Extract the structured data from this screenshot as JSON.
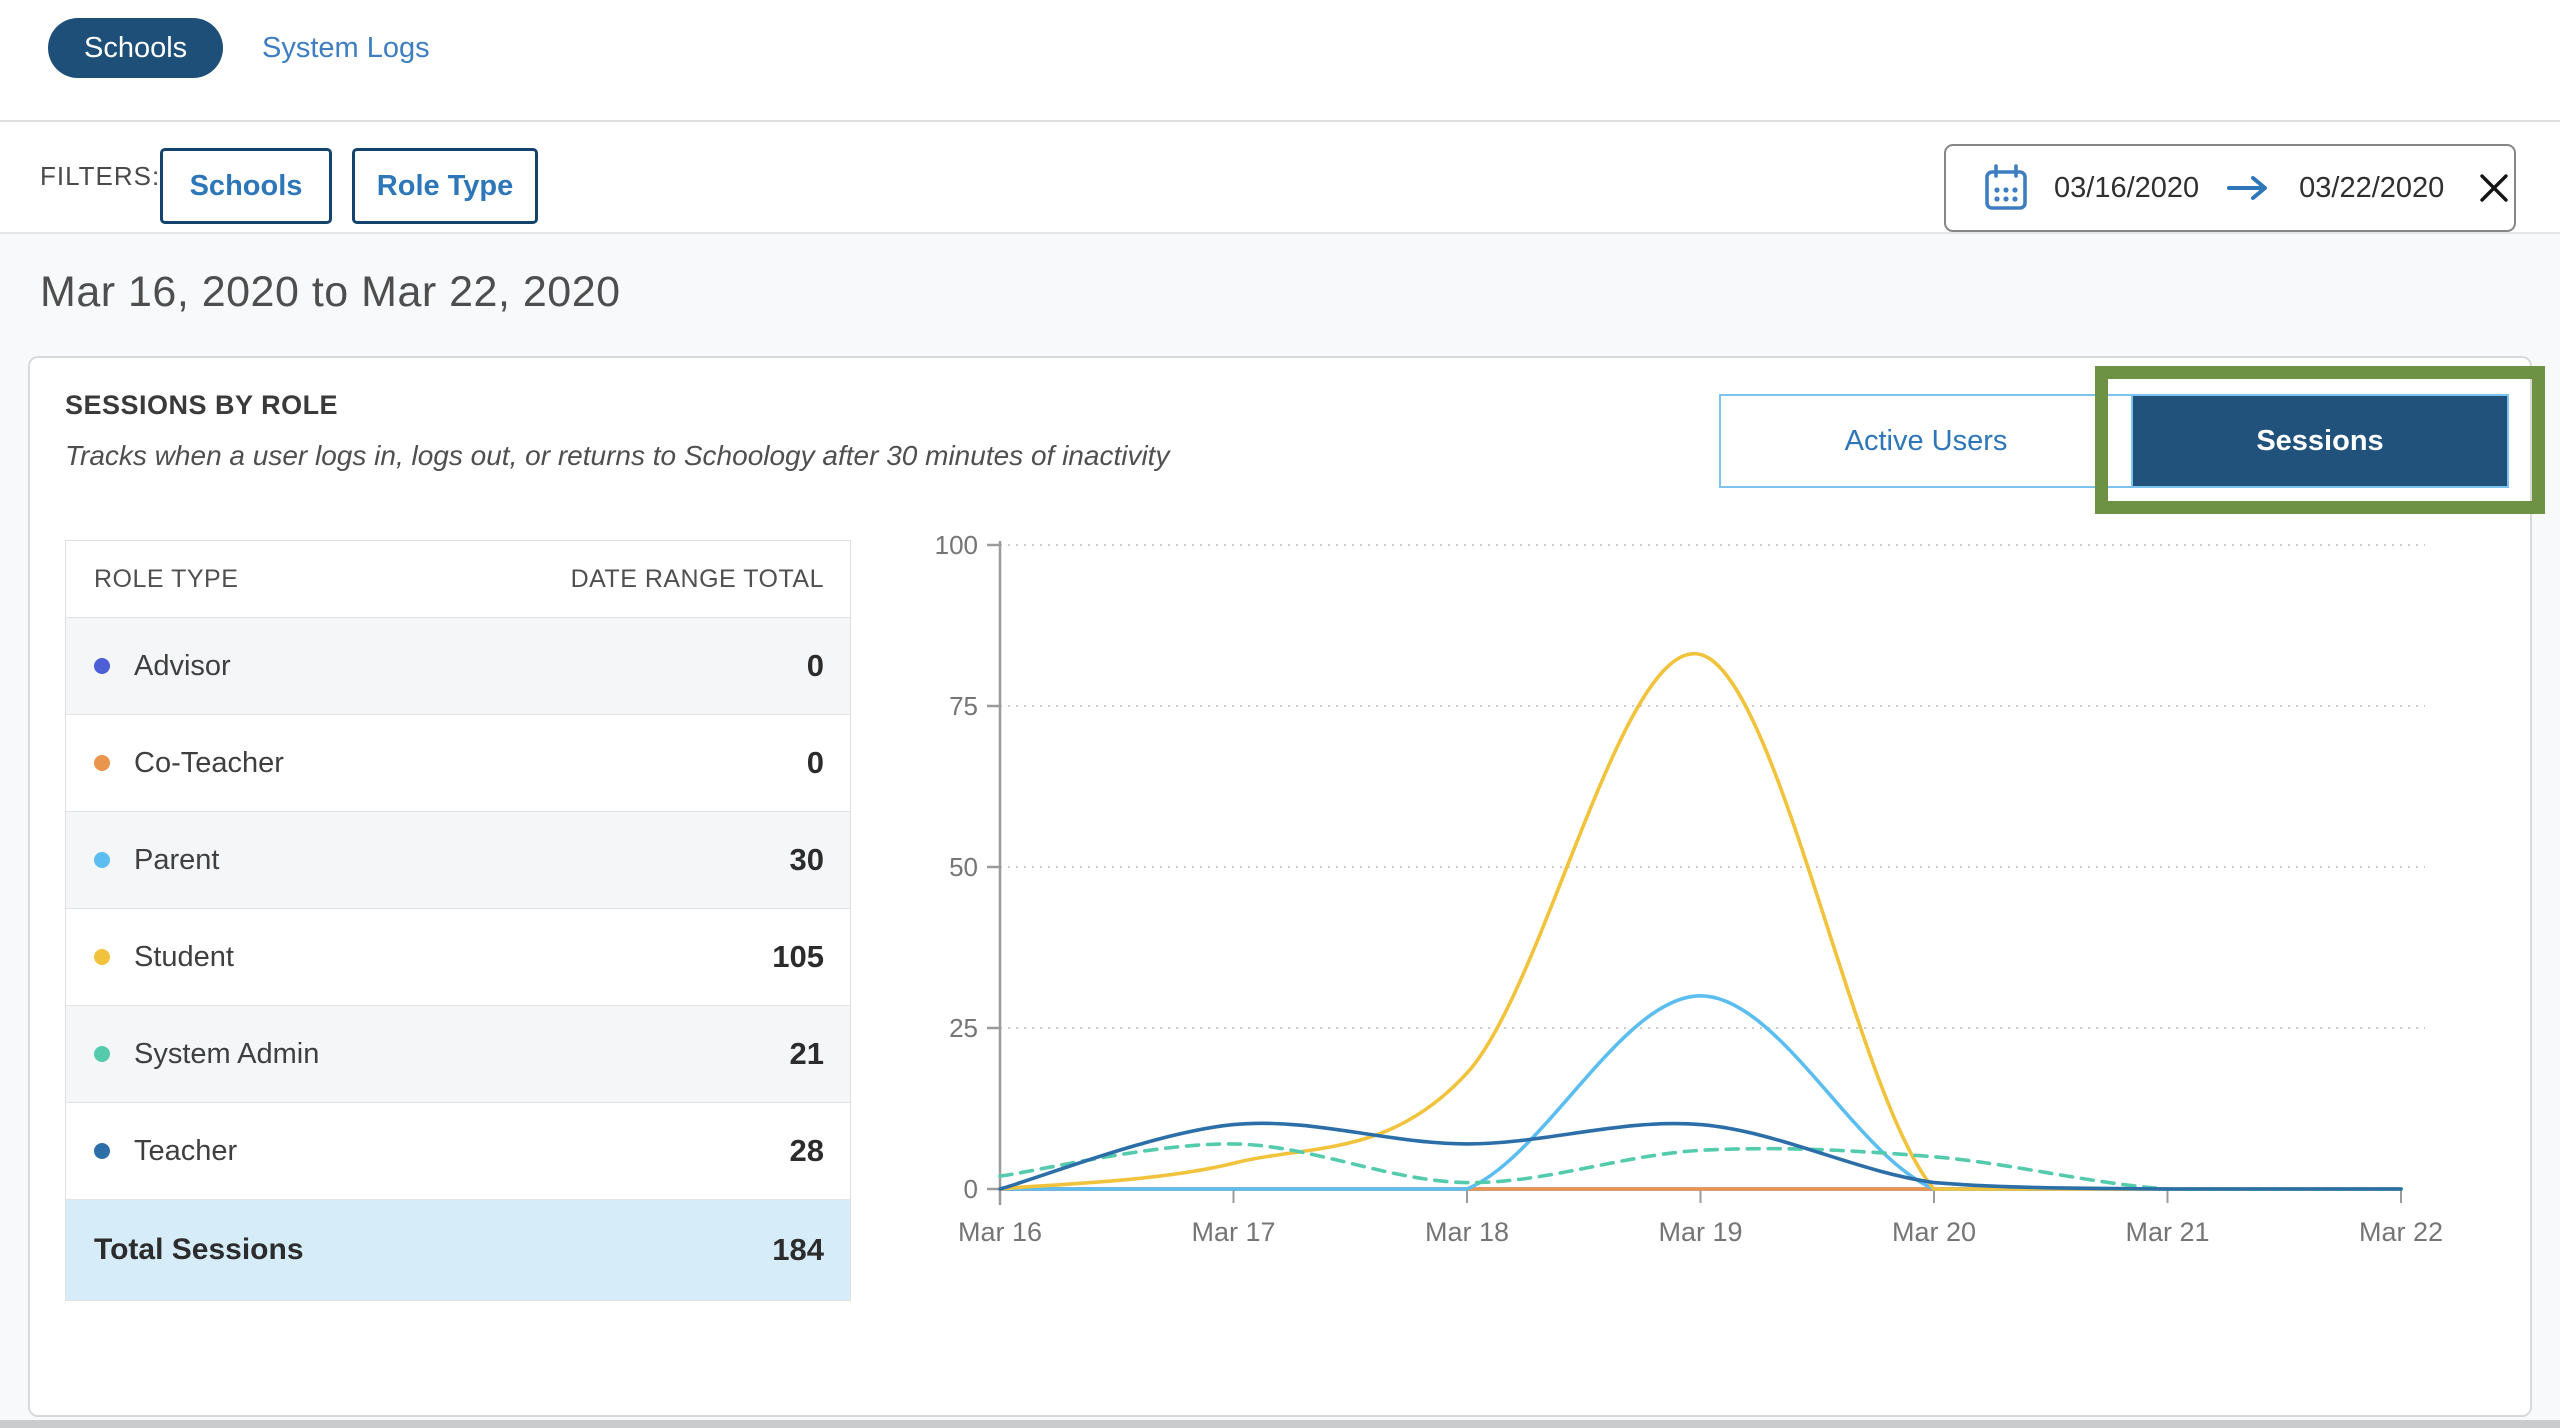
{
  "topbar": {
    "tabs": [
      {
        "label": "Schools",
        "active": true
      },
      {
        "label": "System Logs",
        "active": false
      }
    ]
  },
  "filters": {
    "label": "FILTERS:",
    "buttons": [
      {
        "label": "Schools"
      },
      {
        "label": "Role Type"
      }
    ],
    "date_range": {
      "start": "03/16/2020",
      "end": "03/22/2020",
      "calendar_icon": "calendar-icon",
      "arrow_icon": "arrow-right-icon",
      "clear_icon": "close-icon"
    }
  },
  "page": {
    "heading": "Mar 16, 2020 to Mar 22, 2020"
  },
  "card": {
    "title": "SESSIONS BY ROLE",
    "subtitle": "Tracks when a user logs in, logs out, or returns to Schoology after 30 minutes of inactivity",
    "toggle": {
      "options": [
        {
          "label": "Active Users",
          "selected": false
        },
        {
          "label": "Sessions",
          "selected": true
        }
      ],
      "selected_bg": "#21527c",
      "annotation_highlight_color": "#6d9243"
    },
    "table": {
      "columns": [
        "ROLE TYPE",
        "DATE RANGE TOTAL"
      ],
      "rows": [
        {
          "label": "Advisor",
          "value": "0",
          "color": "#4c5fd6"
        },
        {
          "label": "Co-Teacher",
          "value": "0",
          "color": "#e9954e"
        },
        {
          "label": "Parent",
          "value": "30",
          "color": "#5bbdf0"
        },
        {
          "label": "Student",
          "value": "105",
          "color": "#f1c33c"
        },
        {
          "label": "System Admin",
          "value": "21",
          "color": "#55cbae"
        },
        {
          "label": "Teacher",
          "value": "28",
          "color": "#2c6fa8"
        }
      ],
      "total": {
        "label": "Total Sessions",
        "value": "184"
      }
    }
  },
  "chart_data": {
    "type": "line",
    "title": "Sessions by role, daily count",
    "x": [
      "Mar 16",
      "Mar 17",
      "Mar 18",
      "Mar 19",
      "Mar 20",
      "Mar 21",
      "Mar 22"
    ],
    "xlabel": "",
    "ylabel": "",
    "ylim": [
      0,
      100
    ],
    "yticks": [
      0,
      25,
      50,
      75,
      100
    ],
    "grid": "dotted horizontal gridlines at 25/50/75/100, none at 0",
    "legend_position": "none (table at left serves as legend)",
    "curve": "smooth spline",
    "series": [
      {
        "name": "Advisor",
        "color": "#4c5fd6",
        "dashed": false,
        "values": [
          0,
          0,
          0,
          0,
          0,
          0,
          0
        ]
      },
      {
        "name": "Co-Teacher",
        "color": "#e9954e",
        "dashed": false,
        "values": [
          0,
          0,
          0,
          0,
          0,
          0,
          0
        ]
      },
      {
        "name": "Parent",
        "color": "#5bbdf0",
        "dashed": false,
        "values": [
          0,
          0,
          0,
          30,
          0,
          0,
          0
        ]
      },
      {
        "name": "Student",
        "color": "#f1c33c",
        "dashed": false,
        "values": [
          0,
          4,
          18,
          83,
          0,
          0,
          0
        ]
      },
      {
        "name": "System Admin",
        "color": "#55cbae",
        "dashed": true,
        "values": [
          2,
          7,
          1,
          6,
          5,
          0,
          0
        ]
      },
      {
        "name": "Teacher",
        "color": "#2c6fa8",
        "dashed": false,
        "values": [
          0,
          10,
          7,
          10,
          1,
          0,
          0
        ]
      }
    ],
    "axis_color": "#9b9b9b",
    "tick_label_color": "#757575",
    "gridline_color": "#cccccc"
  }
}
